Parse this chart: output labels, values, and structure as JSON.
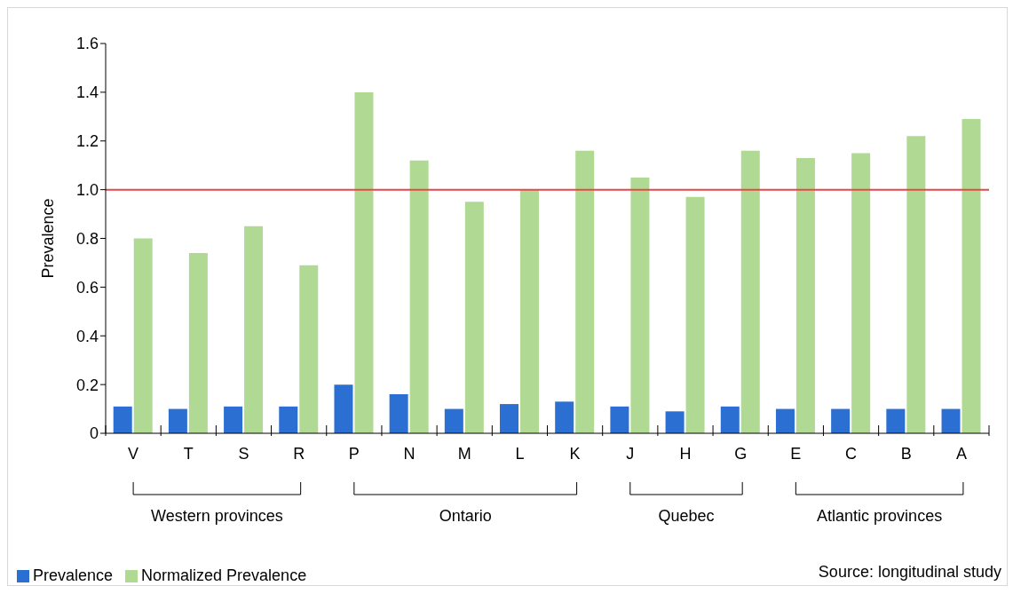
{
  "chart_data": {
    "type": "bar",
    "ylabel": "Prevalence",
    "categories": [
      "V",
      "T",
      "S",
      "R",
      "P",
      "N",
      "M",
      "L",
      "K",
      "J",
      "H",
      "G",
      "E",
      "C",
      "B",
      "A"
    ],
    "series": [
      {
        "name": "Prevalence",
        "color": "#2a6fd1",
        "values": [
          0.11,
          0.1,
          0.11,
          0.11,
          0.2,
          0.16,
          0.1,
          0.12,
          0.13,
          0.11,
          0.09,
          0.11,
          0.1,
          0.1,
          0.1,
          0.1
        ]
      },
      {
        "name": "Normalized Prevalence",
        "color": "#b0d993",
        "values": [
          0.8,
          0.74,
          0.85,
          0.69,
          1.4,
          1.12,
          0.95,
          1.0,
          1.16,
          1.05,
          0.97,
          1.16,
          1.13,
          1.15,
          1.22,
          1.29
        ]
      }
    ],
    "ylim": [
      0,
      1.6
    ],
    "yticks": [
      0,
      0.2,
      0.4,
      0.6,
      0.8,
      {
        "value": 1,
        "label": "1.0"
      },
      1.2,
      1.4,
      1.6
    ],
    "ref_lines": [
      {
        "axis": "y",
        "value": 1,
        "color": "#e8474a"
      }
    ],
    "grid": false,
    "legend": "bottom left",
    "annotations": [
      "Western provinces",
      "Ontario",
      "Quebec",
      "Atlantic provinces",
      "Source: longitudinal study"
    ]
  }
}
